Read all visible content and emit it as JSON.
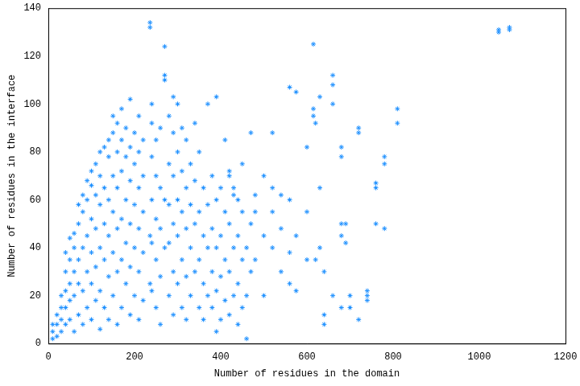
{
  "chart_data": {
    "type": "scatter",
    "x_label": "Number of residues in the domain",
    "y_label": "Number of residues in the interface",
    "color": "#1e90ff",
    "marker": "star",
    "grid": false,
    "xlim": [
      0,
      1200
    ],
    "xticks": [
      0,
      200,
      400,
      600,
      800,
      1000,
      1200
    ],
    "ylim": [
      0,
      140
    ],
    "yticks": [
      0,
      20,
      40,
      60,
      80,
      100,
      120,
      140
    ],
    "x": [
      10,
      10,
      10,
      20,
      20,
      20,
      30,
      30,
      30,
      30,
      40,
      40,
      40,
      40,
      40,
      50,
      50,
      50,
      50,
      50,
      60,
      60,
      60,
      60,
      60,
      70,
      70,
      70,
      70,
      70,
      80,
      80,
      80,
      80,
      80,
      90,
      90,
      90,
      90,
      90,
      100,
      100,
      100,
      100,
      100,
      100,
      110,
      110,
      110,
      110,
      110,
      120,
      120,
      120,
      120,
      120,
      120,
      130,
      130,
      130,
      130,
      130,
      140,
      140,
      140,
      140,
      140,
      140,
      150,
      150,
      150,
      150,
      150,
      150,
      160,
      160,
      160,
      160,
      160,
      160,
      170,
      170,
      170,
      170,
      170,
      170,
      180,
      180,
      180,
      180,
      180,
      190,
      190,
      190,
      190,
      190,
      190,
      200,
      200,
      200,
      200,
      200,
      210,
      210,
      210,
      210,
      210,
      210,
      220,
      220,
      220,
      220,
      220,
      236,
      236,
      236,
      236,
      240,
      240,
      240,
      240,
      240,
      240,
      250,
      250,
      250,
      250,
      250,
      260,
      260,
      260,
      260,
      260,
      270,
      270,
      270,
      270,
      270,
      280,
      280,
      280,
      280,
      280,
      290,
      290,
      290,
      290,
      290,
      290,
      300,
      300,
      300,
      300,
      300,
      310,
      310,
      310,
      310,
      310,
      320,
      320,
      320,
      320,
      320,
      330,
      330,
      330,
      330,
      340,
      340,
      340,
      340,
      350,
      350,
      350,
      350,
      360,
      360,
      360,
      360,
      370,
      370,
      370,
      370,
      380,
      380,
      380,
      380,
      390,
      390,
      390,
      390,
      390,
      400,
      400,
      400,
      400,
      410,
      410,
      410,
      410,
      420,
      420,
      420,
      420,
      420,
      430,
      430,
      430,
      430,
      440,
      440,
      440,
      440,
      450,
      450,
      450,
      450,
      460,
      460,
      460,
      470,
      470,
      470,
      480,
      480,
      480,
      500,
      500,
      500,
      520,
      520,
      520,
      520,
      540,
      540,
      540,
      560,
      560,
      560,
      560,
      575,
      575,
      575,
      600,
      600,
      600,
      615,
      615,
      615,
      620,
      620,
      630,
      630,
      630,
      640,
      640,
      640,
      660,
      660,
      660,
      660,
      680,
      680,
      680,
      680,
      680,
      690,
      690,
      700,
      700,
      720,
      720,
      720,
      740,
      740,
      740,
      760,
      760,
      760,
      780,
      780,
      780,
      810,
      810,
      1045,
      1045,
      1070,
      1070
    ],
    "values": [
      2,
      5,
      8,
      3,
      8,
      12,
      5,
      10,
      15,
      20,
      8,
      15,
      22,
      30,
      38,
      10,
      18,
      25,
      35,
      44,
      5,
      20,
      30,
      40,
      46,
      12,
      25,
      35,
      50,
      58,
      8,
      22,
      40,
      55,
      62,
      15,
      30,
      45,
      60,
      68,
      10,
      25,
      38,
      52,
      66,
      72,
      18,
      32,
      48,
      62,
      75,
      6,
      22,
      40,
      58,
      70,
      80,
      15,
      35,
      50,
      65,
      82,
      10,
      28,
      45,
      60,
      78,
      85,
      20,
      38,
      55,
      70,
      88,
      95,
      8,
      30,
      48,
      65,
      80,
      92,
      15,
      35,
      52,
      72,
      85,
      98,
      25,
      42,
      60,
      78,
      90,
      12,
      32,
      50,
      68,
      82,
      102,
      20,
      40,
      58,
      75,
      88,
      10,
      30,
      48,
      65,
      80,
      95,
      18,
      38,
      55,
      70,
      85,
      132,
      134,
      45,
      25,
      22,
      42,
      60,
      78,
      92,
      100,
      15,
      35,
      52,
      70,
      85,
      8,
      28,
      48,
      65,
      90,
      124,
      110,
      112,
      40,
      60,
      20,
      42,
      58,
      75,
      95,
      12,
      30,
      50,
      70,
      88,
      103,
      25,
      45,
      60,
      80,
      100,
      15,
      35,
      55,
      72,
      90,
      10,
      28,
      48,
      65,
      85,
      20,
      40,
      58,
      75,
      30,
      50,
      68,
      92,
      15,
      35,
      55,
      80,
      10,
      25,
      45,
      65,
      20,
      40,
      58,
      100,
      15,
      30,
      48,
      70,
      5,
      22,
      40,
      60,
      103,
      10,
      28,
      45,
      65,
      18,
      35,
      55,
      85,
      12,
      30,
      50,
      70,
      72,
      20,
      40,
      62,
      65,
      8,
      25,
      45,
      60,
      15,
      35,
      55,
      75,
      2,
      20,
      40,
      30,
      50,
      88,
      35,
      55,
      62,
      20,
      45,
      70,
      40,
      55,
      65,
      88,
      30,
      48,
      62,
      25,
      38,
      60,
      107,
      22,
      45,
      105,
      35,
      55,
      82,
      98,
      95,
      125,
      92,
      35,
      40,
      65,
      103,
      8,
      12,
      30,
      108,
      112,
      100,
      20,
      82,
      50,
      45,
      78,
      15,
      42,
      50,
      15,
      20,
      10,
      90,
      88,
      18,
      20,
      22,
      65,
      50,
      67,
      75,
      78,
      48,
      92,
      98,
      130,
      131,
      131,
      132
    ]
  }
}
